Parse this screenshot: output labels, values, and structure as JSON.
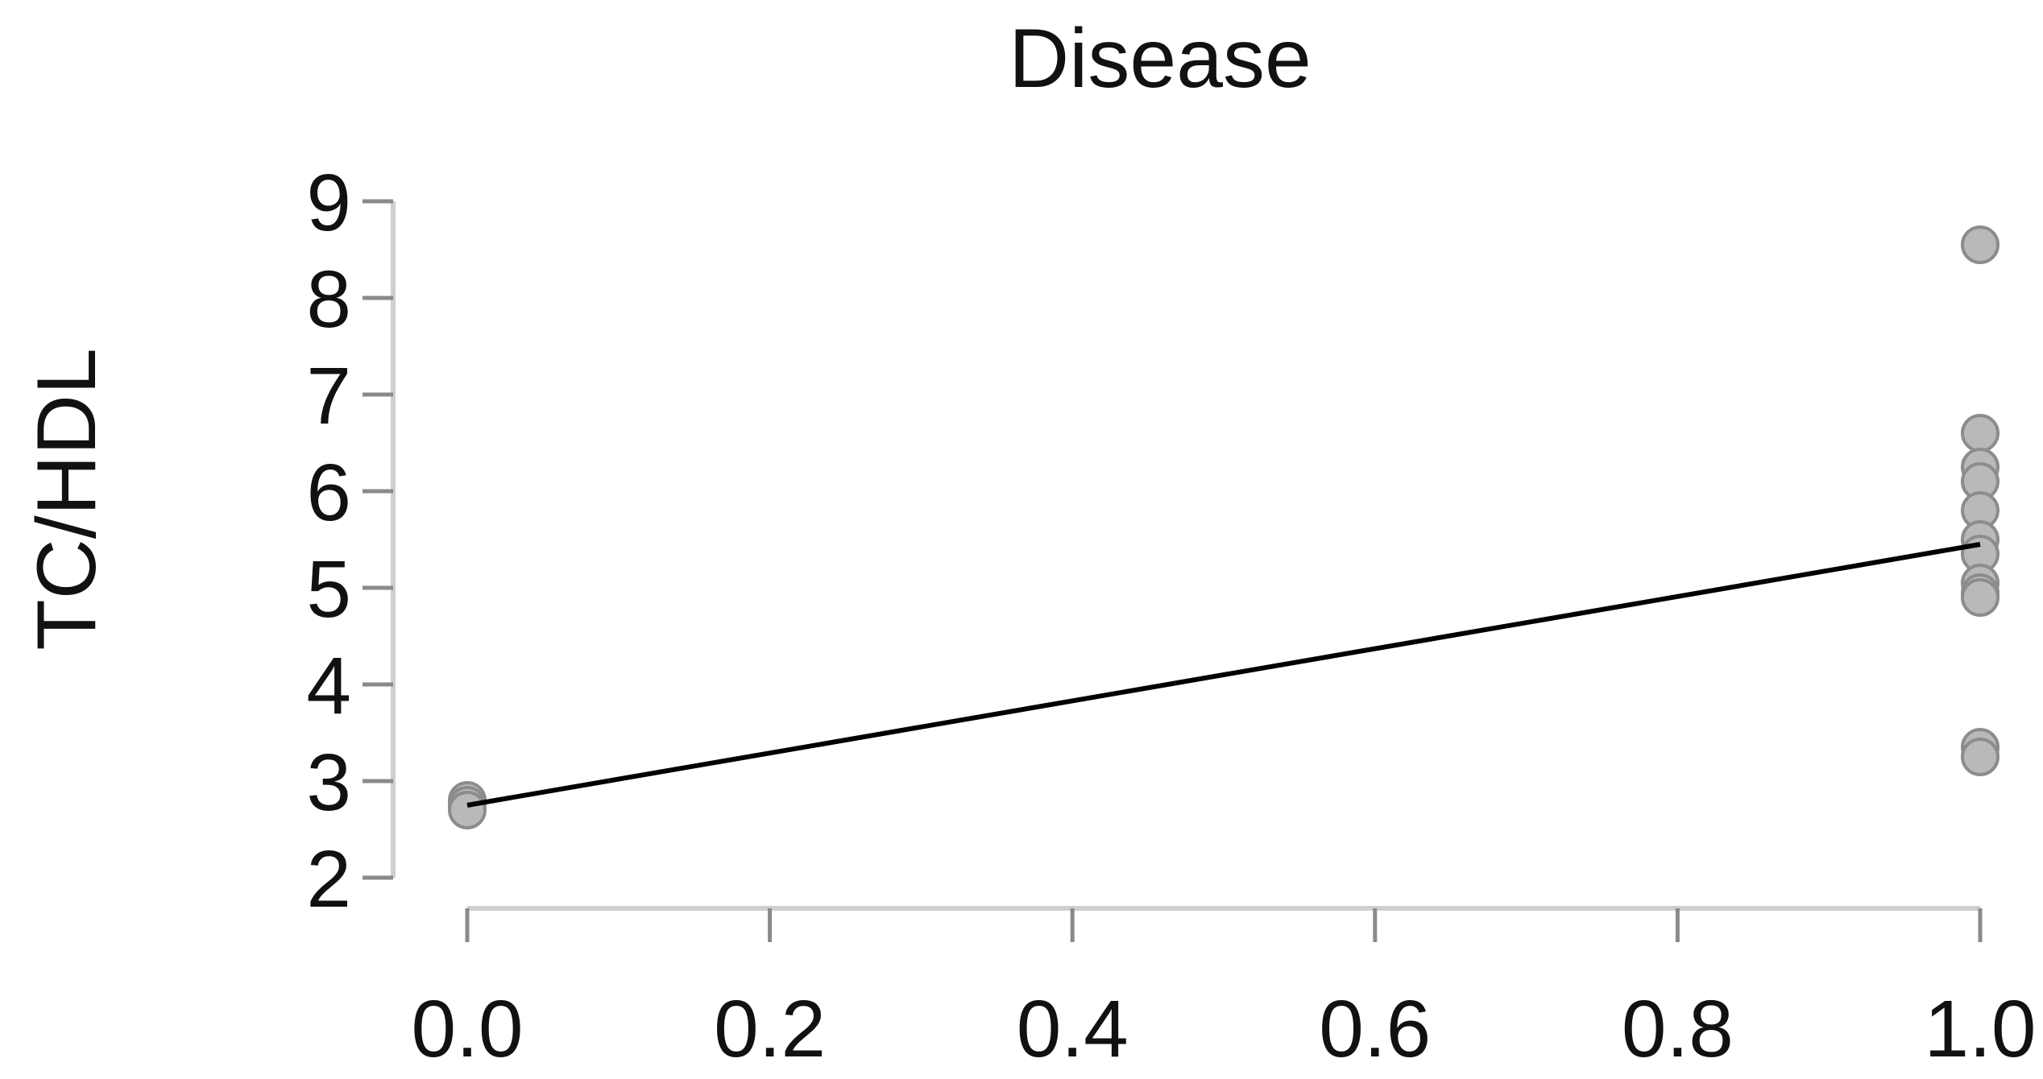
{
  "chart_data": {
    "type": "scatter",
    "title": "Disease",
    "xlabel": "",
    "ylabel": "TC/HDL",
    "xlim": [
      0.0,
      1.0
    ],
    "ylim": [
      2,
      9
    ],
    "x_ticks": [
      "0.0",
      "0.2",
      "0.4",
      "0.6",
      "0.8",
      "1.0"
    ],
    "y_ticks": [
      "2",
      "3",
      "4",
      "5",
      "6",
      "7",
      "8",
      "9"
    ],
    "grid": false,
    "series": [
      {
        "type": "scatter",
        "x": [
          0,
          0,
          0,
          1,
          1,
          1,
          1,
          1,
          1,
          1,
          1,
          1,
          1,
          1,
          1
        ],
        "y": [
          2.8,
          2.75,
          2.7,
          8.55,
          6.6,
          6.25,
          6.1,
          5.8,
          5.5,
          5.35,
          5.05,
          4.95,
          4.9,
          3.35,
          3.25
        ]
      },
      {
        "type": "line",
        "x": [
          0,
          1
        ],
        "y": [
          2.75,
          5.45
        ]
      }
    ],
    "colors": {
      "point_fill": "#b9b9b9",
      "point_stroke": "#8c8c8c",
      "line": "#000000",
      "axis": "#cfcfcf"
    }
  }
}
